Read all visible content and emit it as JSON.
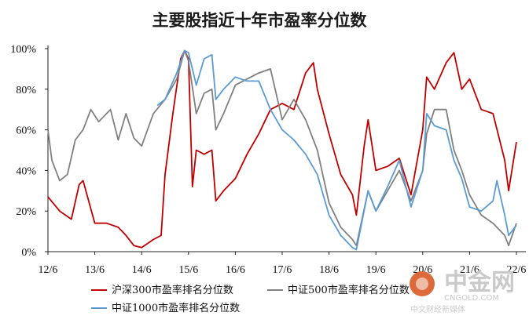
{
  "chart_data": {
    "type": "line",
    "title": "主要股指近十年市盈率分位数",
    "xlabel": "",
    "ylabel": "",
    "ylim": [
      0,
      100
    ],
    "yticks": [
      "0%",
      "20%",
      "40%",
      "60%",
      "80%",
      "100%"
    ],
    "xticks": [
      "12/6",
      "13/6",
      "14/6",
      "15/6",
      "16/6",
      "17/6",
      "18/6",
      "19/6",
      "20/6",
      "21/6",
      "22/6"
    ],
    "x_range": [
      "2012-06",
      "2022-06"
    ],
    "legend_position": "bottom",
    "grid": false,
    "series": [
      {
        "name": "沪深300市盈率排名分位数",
        "color": "#c00000",
        "points": [
          [
            "2012-06",
            27
          ],
          [
            "2012-09",
            20
          ],
          [
            "2012-12",
            16
          ],
          [
            "2013-02",
            33
          ],
          [
            "2013-03",
            35
          ],
          [
            "2013-06",
            14
          ],
          [
            "2013-09",
            14
          ],
          [
            "2013-12",
            12
          ],
          [
            "2014-02",
            8
          ],
          [
            "2014-04",
            3
          ],
          [
            "2014-06",
            2
          ],
          [
            "2014-09",
            6
          ],
          [
            "2014-11",
            8
          ],
          [
            "2014-12",
            38
          ],
          [
            "2015-02",
            68
          ],
          [
            "2015-04",
            95
          ],
          [
            "2015-05",
            99
          ],
          [
            "2015-06",
            95
          ],
          [
            "2015-07",
            32
          ],
          [
            "2015-08",
            50
          ],
          [
            "2015-10",
            48
          ],
          [
            "2015-12",
            50
          ],
          [
            "2016-01",
            25
          ],
          [
            "2016-03",
            30
          ],
          [
            "2016-06",
            36
          ],
          [
            "2016-09",
            48
          ],
          [
            "2016-12",
            58
          ],
          [
            "2017-03",
            70
          ],
          [
            "2017-06",
            73
          ],
          [
            "2017-09",
            70
          ],
          [
            "2017-12",
            88
          ],
          [
            "2018-02",
            93
          ],
          [
            "2018-03",
            80
          ],
          [
            "2018-06",
            58
          ],
          [
            "2018-09",
            38
          ],
          [
            "2018-12",
            28
          ],
          [
            "2019-01",
            18
          ],
          [
            "2019-03",
            52
          ],
          [
            "2019-04",
            65
          ],
          [
            "2019-06",
            40
          ],
          [
            "2019-09",
            42
          ],
          [
            "2019-12",
            46
          ],
          [
            "2020-03",
            28
          ],
          [
            "2020-06",
            60
          ],
          [
            "2020-07",
            86
          ],
          [
            "2020-09",
            80
          ],
          [
            "2020-12",
            93
          ],
          [
            "2021-02",
            98
          ],
          [
            "2021-04",
            80
          ],
          [
            "2021-06",
            85
          ],
          [
            "2021-09",
            70
          ],
          [
            "2021-12",
            68
          ],
          [
            "2022-03",
            45
          ],
          [
            "2022-04",
            30
          ],
          [
            "2022-06",
            54
          ]
        ]
      },
      {
        "name": "中证500市盈率排名分位数",
        "color": "#808080",
        "points": [
          [
            "2012-06",
            60
          ],
          [
            "2012-07",
            45
          ],
          [
            "2012-09",
            35
          ],
          [
            "2012-11",
            38
          ],
          [
            "2013-01",
            55
          ],
          [
            "2013-03",
            60
          ],
          [
            "2013-05",
            70
          ],
          [
            "2013-07",
            64
          ],
          [
            "2013-10",
            70
          ],
          [
            "2013-12",
            55
          ],
          [
            "2014-02",
            68
          ],
          [
            "2014-04",
            56
          ],
          [
            "2014-06",
            52
          ],
          [
            "2014-09",
            68
          ],
          [
            "2014-12",
            75
          ],
          [
            "2015-03",
            85
          ],
          [
            "2015-05",
            99
          ],
          [
            "2015-06",
            94
          ],
          [
            "2015-08",
            68
          ],
          [
            "2015-10",
            78
          ],
          [
            "2015-12",
            80
          ],
          [
            "2016-01",
            60
          ],
          [
            "2016-03",
            68
          ],
          [
            "2016-06",
            82
          ],
          [
            "2016-09",
            85
          ],
          [
            "2016-12",
            88
          ],
          [
            "2017-03",
            90
          ],
          [
            "2017-06",
            65
          ],
          [
            "2017-09",
            75
          ],
          [
            "2017-12",
            65
          ],
          [
            "2018-03",
            50
          ],
          [
            "2018-06",
            24
          ],
          [
            "2018-09",
            12
          ],
          [
            "2018-12",
            6
          ],
          [
            "2019-01",
            3
          ],
          [
            "2019-04",
            30
          ],
          [
            "2019-06",
            20
          ],
          [
            "2019-09",
            30
          ],
          [
            "2019-12",
            40
          ],
          [
            "2020-03",
            25
          ],
          [
            "2020-06",
            40
          ],
          [
            "2020-07",
            58
          ],
          [
            "2020-09",
            70
          ],
          [
            "2020-12",
            70
          ],
          [
            "2021-02",
            50
          ],
          [
            "2021-04",
            40
          ],
          [
            "2021-06",
            28
          ],
          [
            "2021-09",
            18
          ],
          [
            "2021-12",
            14
          ],
          [
            "2022-03",
            8
          ],
          [
            "2022-04",
            3
          ],
          [
            "2022-06",
            14
          ]
        ]
      },
      {
        "name": "中证1000市盈率排名分位数",
        "color": "#5b9bd5",
        "points": [
          [
            "2014-10",
            72
          ],
          [
            "2014-12",
            75
          ],
          [
            "2015-03",
            88
          ],
          [
            "2015-05",
            99
          ],
          [
            "2015-06",
            98
          ],
          [
            "2015-08",
            82
          ],
          [
            "2015-10",
            95
          ],
          [
            "2015-12",
            97
          ],
          [
            "2016-01",
            75
          ],
          [
            "2016-03",
            80
          ],
          [
            "2016-06",
            86
          ],
          [
            "2016-09",
            84
          ],
          [
            "2016-12",
            84
          ],
          [
            "2017-03",
            70
          ],
          [
            "2017-06",
            60
          ],
          [
            "2017-09",
            55
          ],
          [
            "2017-12",
            48
          ],
          [
            "2018-03",
            38
          ],
          [
            "2018-06",
            18
          ],
          [
            "2018-09",
            8
          ],
          [
            "2018-12",
            2
          ],
          [
            "2019-01",
            1
          ],
          [
            "2019-04",
            30
          ],
          [
            "2019-06",
            20
          ],
          [
            "2019-09",
            32
          ],
          [
            "2019-12",
            45
          ],
          [
            "2020-03",
            22
          ],
          [
            "2020-06",
            40
          ],
          [
            "2020-07",
            68
          ],
          [
            "2020-09",
            62
          ],
          [
            "2020-12",
            60
          ],
          [
            "2021-02",
            45
          ],
          [
            "2021-04",
            36
          ],
          [
            "2021-06",
            22
          ],
          [
            "2021-09",
            20
          ],
          [
            "2021-12",
            25
          ],
          [
            "2022-01",
            35
          ],
          [
            "2022-03",
            18
          ],
          [
            "2022-04",
            8
          ],
          [
            "2022-06",
            13
          ]
        ]
      }
    ]
  },
  "watermark": {
    "big": "中金网",
    "domain": "CNGOLD.COM",
    "tagline": "中文财经新媒体"
  }
}
